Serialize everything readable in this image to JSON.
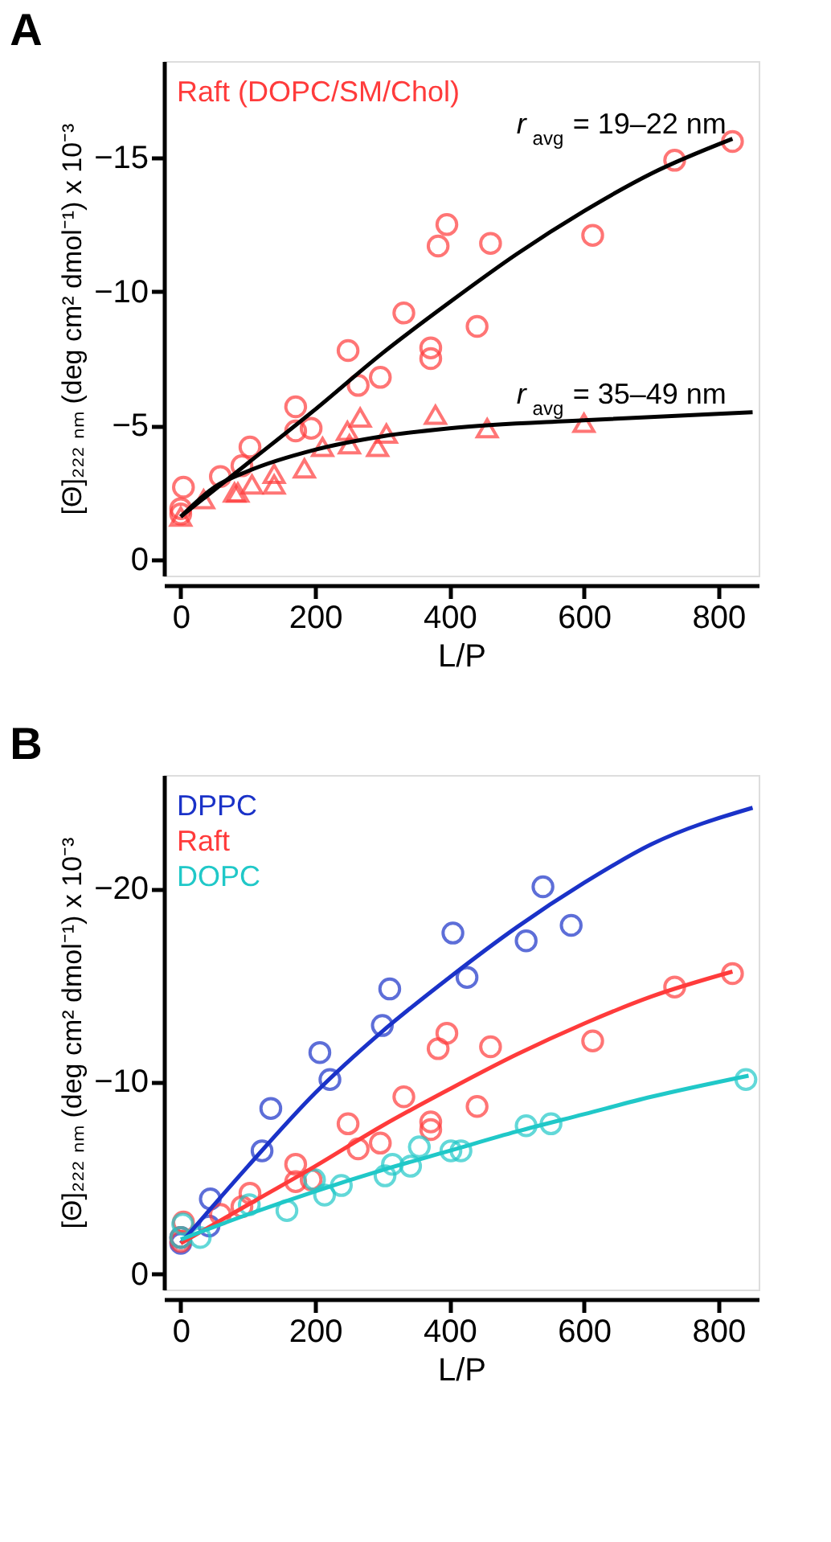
{
  "chart_data": [
    {
      "type": "scatter",
      "title": "A",
      "xlabel": "L/P",
      "ylabel": "[Θ]₂₂₂ ₙₘ (deg cm² dmol⁻¹) x 10⁻³",
      "xlim": [
        -25,
        860
      ],
      "ylim": [
        0.6,
        -18.6
      ],
      "xticks": [
        0,
        200,
        400,
        600,
        800
      ],
      "yticks": [
        0,
        -5,
        -10,
        -15
      ],
      "grid": false,
      "legend": "top left",
      "annotations": [
        "r$_{avg}$ = 19–22 nm",
        "r$_{avg}$ = 35–49 nm"
      ],
      "series": [
        {
          "name": "Raft (DOPC/SM/Chol)",
          "type": "scatter",
          "marker": "circle",
          "color": "#ff3b3b",
          "x": [
            0,
            0,
            4,
            59,
            91,
            103,
            171,
            171,
            194,
            249,
            264,
            297,
            332,
            372,
            372,
            383,
            396,
            441,
            461,
            613,
            735,
            821
          ],
          "values": [
            -1.7,
            -1.9,
            -2.7,
            -3.1,
            -3.5,
            -4.2,
            -5.7,
            -4.8,
            -4.9,
            -7.8,
            -6.5,
            -6.8,
            -9.2,
            -7.9,
            -7.5,
            -11.7,
            -12.5,
            -8.7,
            -11.8,
            -12.1,
            -14.9,
            -15.6
          ]
        },
        {
          "type": "scatter",
          "marker": "triangle",
          "color": "#ff3b3b",
          "x": [
            0,
            34,
            80,
            85,
            106,
            139,
            139,
            184,
            211,
            248,
            251,
            267,
            293,
            306,
            379,
            456,
            600
          ],
          "values": [
            -1.6,
            -2.25,
            -2.5,
            -2.5,
            -2.8,
            -3.2,
            -2.8,
            -3.4,
            -4.2,
            -4.8,
            -4.3,
            -5.3,
            -4.2,
            -4.7,
            -5.4,
            -4.9,
            -5.1
          ]
        },
        {
          "type": "line",
          "line_style": "solid",
          "color": "#000000",
          "x": [
            0,
            100,
            200,
            300,
            400,
            500,
            600,
            700,
            821
          ],
          "values": [
            -1.6,
            -3.6,
            -5.6,
            -7.7,
            -9.6,
            -11.4,
            -13.0,
            -14.4,
            -15.7
          ]
        },
        {
          "type": "line",
          "line_style": "solid",
          "color": "#000000",
          "x": [
            0,
            50,
            100,
            200,
            300,
            400,
            600,
            851
          ],
          "values": [
            -1.6,
            -2.7,
            -3.3,
            -4.1,
            -4.6,
            -4.9,
            -5.2,
            -5.5
          ]
        }
      ]
    },
    {
      "type": "scatter",
      "title": "B",
      "xlabel": "L/P",
      "ylabel": "[Θ]₂₂₂ ₙₘ (deg cm² dmol⁻¹) x 10⁻³",
      "xlim": [
        -25,
        860
      ],
      "ylim": [
        0.8,
        -25.9
      ],
      "xticks": [
        0,
        200,
        400,
        600,
        800
      ],
      "yticks": [
        0,
        -10,
        -20
      ],
      "grid": false,
      "legend": "top left",
      "series": [
        {
          "name": "DPPC",
          "type": "scatter",
          "marker": "circle",
          "color": "#1a32c8",
          "x": [
            0,
            0,
            42,
            44,
            121,
            134,
            207,
            222,
            300,
            311,
            405,
            426,
            514,
            539,
            581
          ],
          "values": [
            -1.6,
            -1.9,
            -2.5,
            -3.9,
            -6.4,
            -8.6,
            -11.5,
            -10.1,
            -12.9,
            -14.8,
            -17.7,
            -15.4,
            -17.3,
            -20.1,
            -18.1
          ]
        },
        {
          "name": "Raft",
          "type": "scatter",
          "marker": "circle",
          "color": "#ff3b3b",
          "x": [
            0,
            0,
            4,
            59,
            91,
            103,
            171,
            171,
            194,
            249,
            264,
            297,
            332,
            372,
            372,
            383,
            396,
            441,
            461,
            613,
            735,
            821
          ],
          "values": [
            -1.7,
            -1.9,
            -2.7,
            -3.1,
            -3.5,
            -4.2,
            -5.7,
            -4.8,
            -4.9,
            -7.8,
            -6.5,
            -6.8,
            -9.2,
            -7.9,
            -7.5,
            -11.7,
            -12.5,
            -8.7,
            -11.8,
            -12.1,
            -14.9,
            -15.6
          ]
        },
        {
          "name": "DOPC",
          "type": "scatter",
          "marker": "circle",
          "color": "#20c8c8",
          "x": [
            0,
            3,
            29,
            102,
            158,
            199,
            214,
            239,
            304,
            315,
            342,
            355,
            402,
            417,
            514,
            551,
            841
          ],
          "values": [
            -1.9,
            -2.6,
            -1.9,
            -3.6,
            -3.3,
            -4.9,
            -4.1,
            -4.6,
            -5.1,
            -5.7,
            -5.6,
            -6.6,
            -6.4,
            -6.4,
            -7.7,
            -7.8,
            -10.1
          ]
        },
        {
          "type": "line",
          "line_style": "solid",
          "color": "#1a32c8",
          "x": [
            0,
            100,
            200,
            300,
            400,
            500,
            600,
            700,
            851
          ],
          "values": [
            -1.6,
            -5.6,
            -9.4,
            -12.6,
            -15.4,
            -18.0,
            -20.3,
            -22.3,
            -24.2
          ]
        },
        {
          "type": "line",
          "line_style": "solid",
          "color": "#ff3b3b",
          "x": [
            0,
            100,
            200,
            300,
            400,
            500,
            600,
            700,
            821
          ],
          "values": [
            -1.6,
            -3.6,
            -5.6,
            -7.7,
            -9.6,
            -11.4,
            -13.0,
            -14.4,
            -15.7
          ]
        },
        {
          "type": "line",
          "line_style": "solid",
          "color": "#20c8c8",
          "x": [
            0,
            100,
            200,
            300,
            400,
            500,
            600,
            700,
            845
          ],
          "values": [
            -1.8,
            -3.1,
            -4.3,
            -5.4,
            -6.4,
            -7.4,
            -8.3,
            -9.2,
            -10.3
          ]
        }
      ]
    }
  ]
}
